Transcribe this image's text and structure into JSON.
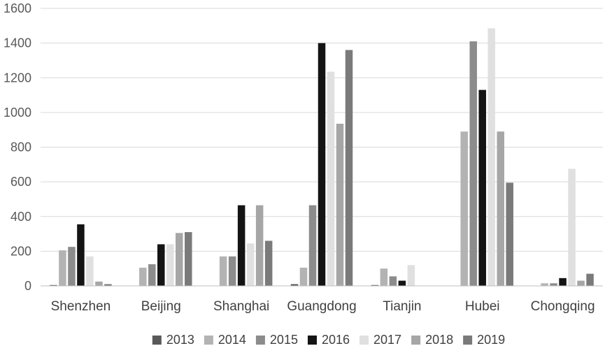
{
  "chart_data": {
    "type": "bar",
    "categories": [
      "Shenzhen",
      "Beijing",
      "Shanghai",
      "Guangdong",
      "Tianjin",
      "Hubei",
      "Chongqing"
    ],
    "series": [
      {
        "name": "2013",
        "color": "#595959",
        "values": [
          5,
          0,
          0,
          10,
          5,
          0,
          0
        ]
      },
      {
        "name": "2014",
        "color": "#b3b3b3",
        "values": [
          205,
          105,
          170,
          105,
          100,
          890,
          15
        ]
      },
      {
        "name": "2015",
        "color": "#8c8c8c",
        "values": [
          225,
          125,
          170,
          465,
          55,
          1410,
          15
        ]
      },
      {
        "name": "2016",
        "color": "#141414",
        "values": [
          355,
          240,
          465,
          1400,
          30,
          1130,
          45
        ]
      },
      {
        "name": "2017",
        "color": "#e0e0e0",
        "values": [
          170,
          240,
          245,
          1235,
          120,
          1485,
          675
        ]
      },
      {
        "name": "2018",
        "color": "#a6a6a6",
        "values": [
          25,
          305,
          465,
          935,
          0,
          890,
          30
        ]
      },
      {
        "name": "2019",
        "color": "#7a7a7a",
        "values": [
          10,
          310,
          260,
          1360,
          0,
          595,
          70
        ]
      }
    ],
    "ylim": [
      0,
      1600
    ],
    "yticks": [
      0,
      200,
      400,
      600,
      800,
      1000,
      1200,
      1400,
      1600
    ],
    "grid": true,
    "legend_position": "bottom",
    "title": "",
    "xlabel": "",
    "ylabel": ""
  }
}
